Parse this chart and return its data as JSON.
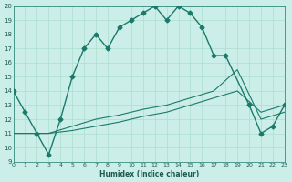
{
  "xlabel": "Humidex (Indice chaleur)",
  "bg_color": "#cceee8",
  "grid_color": "#aaddcc",
  "line_color": "#1a7a6a",
  "xlim": [
    0,
    23
  ],
  "ylim": [
    9,
    20
  ],
  "xticks": [
    0,
    1,
    2,
    3,
    4,
    5,
    6,
    7,
    8,
    9,
    10,
    11,
    12,
    13,
    14,
    15,
    16,
    17,
    18,
    19,
    20,
    21,
    22,
    23
  ],
  "yticks": [
    9,
    10,
    11,
    12,
    13,
    14,
    15,
    16,
    17,
    18,
    19,
    20
  ],
  "line1_x": [
    0,
    1,
    2,
    3,
    4,
    5,
    6,
    7,
    8,
    9,
    10,
    11,
    12,
    13,
    14,
    15,
    16,
    17,
    18,
    20,
    21,
    22,
    23
  ],
  "line1_y": [
    14,
    12.5,
    11,
    9.5,
    12,
    15,
    17,
    18,
    17,
    18.5,
    19,
    19.5,
    20,
    19,
    20,
    19.5,
    18.5,
    16.5,
    16.5,
    13,
    11,
    11.5,
    13
  ],
  "line2_x": [
    0,
    3,
    5,
    7,
    9,
    11,
    13,
    15,
    17,
    19,
    21,
    23
  ],
  "line2_y": [
    11,
    11,
    11.2,
    11.5,
    11.8,
    12.2,
    12.5,
    13,
    13.5,
    14,
    12.5,
    13
  ],
  "line3_x": [
    0,
    3,
    5,
    7,
    9,
    11,
    13,
    15,
    17,
    19,
    21,
    23
  ],
  "line3_y": [
    11,
    11,
    11.5,
    12,
    12.3,
    12.7,
    13,
    13.5,
    14,
    15.5,
    12,
    12.5
  ]
}
